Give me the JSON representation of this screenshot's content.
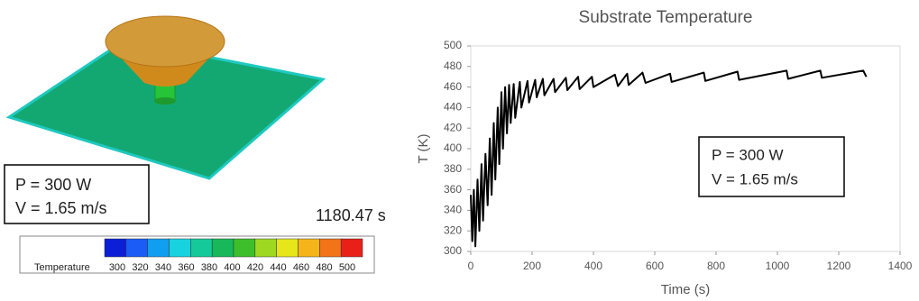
{
  "simulation": {
    "annotations": [
      "P = 300 W",
      "V = 1.65 m/s"
    ],
    "time": "1180.47 s",
    "colorbar": {
      "title": "Temperature",
      "labels": [
        300,
        320,
        340,
        360,
        380,
        400,
        420,
        440,
        460,
        480,
        500
      ],
      "colors": [
        "#0a1fd6",
        "#1a5cf5",
        "#109ef0",
        "#18d2e0",
        "#16c99a",
        "#17b85a",
        "#3cbf2a",
        "#9ed820",
        "#e6e61a",
        "#f5b51a",
        "#f27318",
        "#e82018"
      ]
    }
  },
  "chart_data": {
    "type": "line",
    "title": "Substrate Temperature",
    "x_label": "Time (s)",
    "y_label": "T (K)",
    "annotations": [
      "P = 300 W",
      "V = 1.65 m/s"
    ],
    "color": "#000000",
    "x": [
      0,
      5,
      10,
      15,
      22,
      28,
      35,
      40,
      48,
      55,
      62,
      68,
      75,
      80,
      88,
      93,
      100,
      105,
      112,
      118,
      125,
      130,
      140,
      145,
      160,
      165,
      185,
      190,
      210,
      215,
      235,
      240,
      270,
      275,
      310,
      315,
      350,
      355,
      395,
      400,
      470,
      480,
      510,
      515,
      560,
      570,
      650,
      655,
      760,
      765,
      870,
      875,
      1030,
      1035,
      1140,
      1145,
      1280,
      1290
    ],
    "values": [
      355,
      310,
      360,
      305,
      370,
      320,
      385,
      330,
      395,
      345,
      410,
      355,
      425,
      370,
      440,
      385,
      455,
      400,
      460,
      415,
      462,
      425,
      463,
      430,
      465,
      440,
      466,
      445,
      467,
      450,
      468,
      452,
      468,
      455,
      469,
      457,
      470,
      458,
      470,
      460,
      472,
      461,
      473,
      462,
      474,
      464,
      473,
      465,
      474,
      466,
      475,
      467,
      476,
      468,
      476,
      469,
      476,
      470
    ],
    "xlim": [
      0,
      1400
    ],
    "xticks": [
      0,
      200,
      400,
      600,
      800,
      1000,
      1200,
      1400
    ],
    "ylim": [
      300,
      500
    ],
    "yticks": [
      300,
      320,
      340,
      360,
      380,
      400,
      420,
      440,
      460,
      480,
      500
    ]
  }
}
